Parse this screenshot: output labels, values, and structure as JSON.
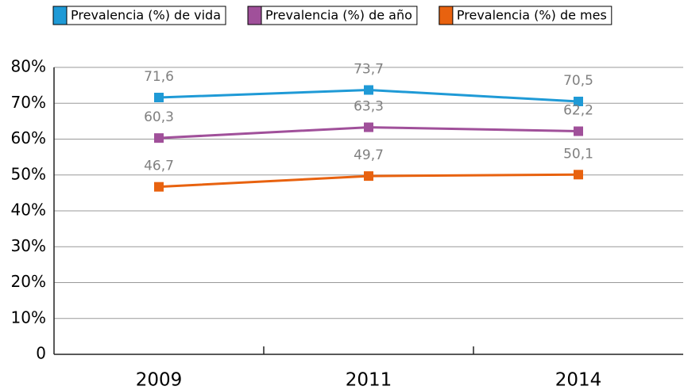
{
  "chart_data": {
    "type": "line",
    "categories": [
      "2009",
      "2011",
      "2014"
    ],
    "series": [
      {
        "name": "Prevalencia (%) de vida",
        "color": "#1f9ad6",
        "values": [
          71.6,
          73.7,
          70.5
        ],
        "value_labels": [
          "71,6",
          "73,7",
          "70,5"
        ]
      },
      {
        "name": "Prevalencia (%) de año",
        "color": "#a0509a",
        "values": [
          60.3,
          63.3,
          62.2
        ],
        "value_labels": [
          "60,3",
          "63,3",
          "62,2"
        ]
      },
      {
        "name": "Prevalencia (%) de mes",
        "color": "#e8620f",
        "values": [
          46.7,
          49.7,
          50.1
        ],
        "value_labels": [
          "46,7",
          "49,7",
          "50,1"
        ]
      }
    ],
    "ylim": [
      0,
      80
    ],
    "yticks": [
      0,
      {
        "value": 10,
        "label": "10%"
      },
      {
        "value": 20,
        "label": "20%"
      },
      {
        "value": 30,
        "label": "30%"
      },
      {
        "value": 40,
        "label": "40%"
      },
      {
        "value": 50,
        "label": "50%"
      },
      {
        "value": 60,
        "label": "60%"
      },
      {
        "value": 70,
        "label": "70%"
      },
      {
        "value": 80,
        "label": "80%"
      }
    ],
    "grid": true,
    "legend": "top"
  }
}
